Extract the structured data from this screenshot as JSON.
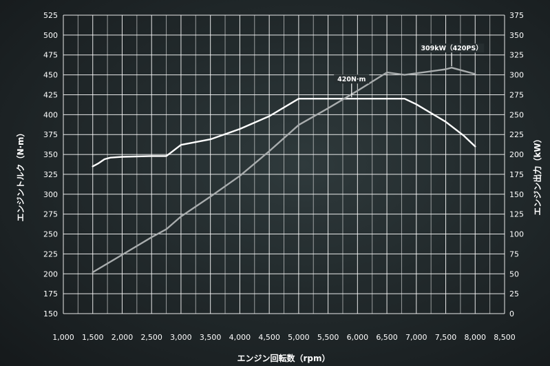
{
  "chart_data": {
    "type": "line",
    "xlabel": "エンジン回転数（rpm）",
    "ylabel_left": "エンジントルク（N·m）",
    "ylabel_right": "エンジン出力（kW）",
    "xlim": [
      1000,
      8500
    ],
    "ylim_left": [
      150,
      525
    ],
    "ylim_right": [
      0,
      375
    ],
    "x_ticks": [
      1000,
      1500,
      2000,
      2500,
      3000,
      3500,
      4000,
      4500,
      5000,
      5500,
      6000,
      6500,
      7000,
      7500,
      8000,
      8500
    ],
    "x_tick_labels": [
      "1,000",
      "1,500",
      "2,000",
      "2,500",
      "3,000",
      "3,500",
      "4,000",
      "4,500",
      "5,000",
      "5,500",
      "6,000",
      "6,500",
      "7,000",
      "7,500",
      "8,000",
      "8,500"
    ],
    "y_left_ticks": [
      150,
      175,
      200,
      225,
      250,
      275,
      300,
      325,
      350,
      375,
      400,
      425,
      450,
      475,
      500,
      525
    ],
    "y_right_ticks": [
      0,
      25,
      50,
      75,
      100,
      125,
      150,
      175,
      200,
      225,
      250,
      275,
      300,
      325,
      350,
      375
    ],
    "grid": true,
    "series": [
      {
        "axis": "left",
        "color": "#ffffff",
        "points": [
          [
            1500,
            335
          ],
          [
            1600,
            339
          ],
          [
            1700,
            344
          ],
          [
            1800,
            346
          ],
          [
            2000,
            347
          ],
          [
            2500,
            348
          ],
          [
            2750,
            348
          ],
          [
            3000,
            362
          ],
          [
            3500,
            369
          ],
          [
            4000,
            382
          ],
          [
            4500,
            398
          ],
          [
            5000,
            420
          ],
          [
            5500,
            420
          ],
          [
            6000,
            420
          ],
          [
            6500,
            420
          ],
          [
            6800,
            420
          ],
          [
            7000,
            413
          ],
          [
            7500,
            391
          ],
          [
            7800,
            374
          ],
          [
            8000,
            360
          ]
        ]
      },
      {
        "axis": "right",
        "color": "#a9adae",
        "points": [
          [
            1500,
            52
          ],
          [
            2000,
            74
          ],
          [
            2500,
            96
          ],
          [
            2750,
            106
          ],
          [
            3000,
            122
          ],
          [
            3500,
            147
          ],
          [
            4000,
            173
          ],
          [
            4500,
            204
          ],
          [
            5000,
            237
          ],
          [
            5500,
            258
          ],
          [
            6000,
            280
          ],
          [
            6500,
            303
          ],
          [
            6800,
            300
          ],
          [
            7000,
            302
          ],
          [
            7500,
            307
          ],
          [
            7600,
            309
          ],
          [
            7800,
            305
          ],
          [
            8000,
            301
          ]
        ]
      }
    ],
    "annotations": [
      {
        "label": "420N·m",
        "x": 5900,
        "y": 420,
        "axis": "left"
      },
      {
        "label": "309kW（420PS）",
        "x": 7600,
        "y": 309,
        "axis": "right"
      }
    ]
  }
}
